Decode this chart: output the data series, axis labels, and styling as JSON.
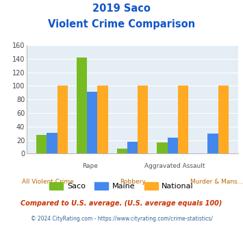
{
  "title_line1": "2019 Saco",
  "title_line2": "Violent Crime Comparison",
  "categories": [
    "All Violent Crime",
    "Rape",
    "Robbery",
    "Aggravated Assault",
    "Murder & Mans..."
  ],
  "saco": [
    28,
    142,
    7,
    17,
    0
  ],
  "maine": [
    31,
    91,
    18,
    24,
    30
  ],
  "national": [
    100,
    100,
    100,
    100,
    100
  ],
  "color_saco": "#77bb22",
  "color_maine": "#4488ee",
  "color_national": "#ffaa22",
  "color_title": "#1155cc",
  "color_bg": "#e4eef4",
  "color_footnote1": "#cc3300",
  "color_footnote2": "#336699",
  "ylim": [
    0,
    160
  ],
  "yticks": [
    0,
    20,
    40,
    60,
    80,
    100,
    120,
    140,
    160
  ],
  "xlabel_top": [
    "",
    "Rape",
    "",
    "Aggravated Assault",
    ""
  ],
  "xlabel_bottom": [
    "All Violent Crime",
    "",
    "Robbery",
    "",
    "Murder & Mans..."
  ],
  "footnote1": "Compared to U.S. average. (U.S. average equals 100)",
  "footnote2": "© 2024 CityRating.com - https://www.cityrating.com/crime-statistics/"
}
